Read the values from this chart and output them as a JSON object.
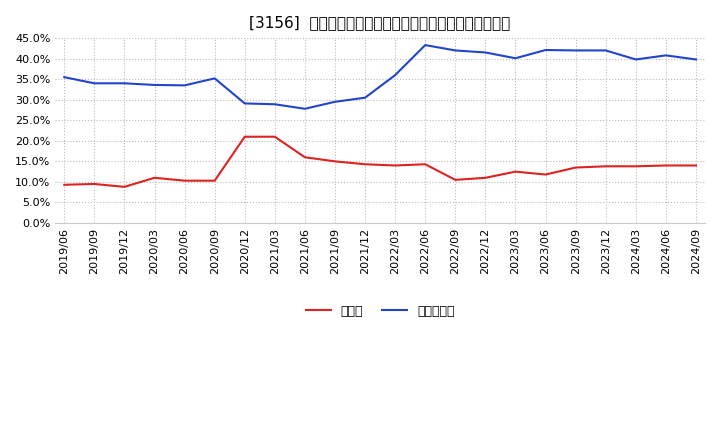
{
  "title": "[3156]  現預金、有利子負債の総資産に対する比率の推移",
  "ylim": [
    0.0,
    0.45
  ],
  "yticks": [
    0.0,
    0.05,
    0.1,
    0.15,
    0.2,
    0.25,
    0.3,
    0.35,
    0.4,
    0.45
  ],
  "dates": [
    "2019/06",
    "2019/09",
    "2019/12",
    "2020/03",
    "2020/06",
    "2020/09",
    "2020/12",
    "2021/03",
    "2021/06",
    "2021/09",
    "2021/12",
    "2022/03",
    "2022/06",
    "2022/09",
    "2022/12",
    "2023/03",
    "2023/06",
    "2023/09",
    "2023/12",
    "2024/03",
    "2024/06",
    "2024/09"
  ],
  "cash": [
    0.093,
    0.095,
    0.088,
    0.11,
    0.103,
    0.103,
    0.21,
    0.21,
    0.16,
    0.15,
    0.143,
    0.14,
    0.143,
    0.105,
    0.11,
    0.125,
    0.118,
    0.135,
    0.138,
    0.138,
    0.14,
    0.14
  ],
  "debt": [
    0.355,
    0.34,
    0.34,
    0.336,
    0.335,
    0.352,
    0.291,
    0.289,
    0.278,
    0.295,
    0.305,
    0.36,
    0.433,
    0.42,
    0.415,
    0.401,
    0.421,
    0.42,
    0.42,
    0.398,
    0.408,
    0.398
  ],
  "cash_color": "#dd2222",
  "debt_color": "#2244cc",
  "background_color": "#ffffff",
  "grid_color": "#bbbbbb",
  "legend_cash": "現預金",
  "legend_debt": "有利子負債",
  "title_fontsize": 11,
  "tick_fontsize": 8,
  "legend_fontsize": 9
}
